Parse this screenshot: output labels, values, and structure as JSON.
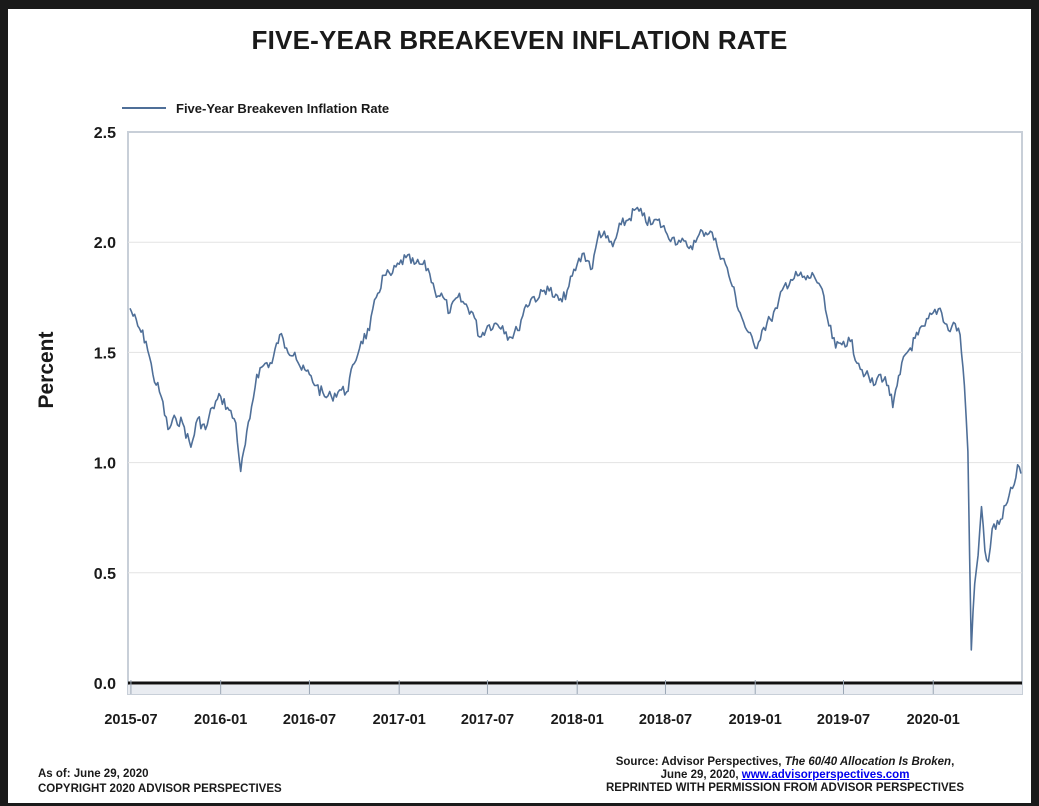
{
  "chart_data": {
    "type": "line",
    "title": "FIVE-YEAR BREAKEVEN INFLATION RATE",
    "ylabel": "Percent",
    "xlabel": "",
    "ylim": [
      -0.05,
      2.5
    ],
    "y_ticks": [
      "0.0",
      "0.5",
      "1.0",
      "1.5",
      "2.0",
      "2.5"
    ],
    "x_ticks": [
      "2015-07",
      "2016-01",
      "2016-07",
      "2017-01",
      "2017-07",
      "2018-01",
      "2018-07",
      "2019-01",
      "2019-07",
      "2020-01"
    ],
    "grid": true,
    "legend_position": "top-left",
    "series": [
      {
        "name": "Five-Year Breakeven Inflation Rate",
        "color": "#4f6f98",
        "points": [
          [
            "2015-06-29",
            1.7
          ],
          [
            "2015-07-15",
            1.62
          ],
          [
            "2015-08-01",
            1.55
          ],
          [
            "2015-08-15",
            1.4
          ],
          [
            "2015-09-01",
            1.3
          ],
          [
            "2015-09-15",
            1.15
          ],
          [
            "2015-10-01",
            1.2
          ],
          [
            "2015-10-15",
            1.18
          ],
          [
            "2015-11-01",
            1.07
          ],
          [
            "2015-11-15",
            1.2
          ],
          [
            "2015-12-01",
            1.15
          ],
          [
            "2015-12-15",
            1.25
          ],
          [
            "2016-01-01",
            1.3
          ],
          [
            "2016-01-15",
            1.25
          ],
          [
            "2016-02-01",
            1.18
          ],
          [
            "2016-02-11",
            0.96
          ],
          [
            "2016-03-01",
            1.2
          ],
          [
            "2016-03-15",
            1.4
          ],
          [
            "2016-04-01",
            1.45
          ],
          [
            "2016-04-15",
            1.45
          ],
          [
            "2016-05-01",
            1.58
          ],
          [
            "2016-05-15",
            1.52
          ],
          [
            "2016-06-01",
            1.5
          ],
          [
            "2016-06-15",
            1.42
          ],
          [
            "2016-07-01",
            1.4
          ],
          [
            "2016-07-15",
            1.35
          ],
          [
            "2016-08-01",
            1.3
          ],
          [
            "2016-08-15",
            1.3
          ],
          [
            "2016-09-01",
            1.33
          ],
          [
            "2016-09-15",
            1.32
          ],
          [
            "2016-10-01",
            1.45
          ],
          [
            "2016-10-15",
            1.55
          ],
          [
            "2016-11-01",
            1.6
          ],
          [
            "2016-11-15",
            1.75
          ],
          [
            "2016-12-01",
            1.85
          ],
          [
            "2016-12-15",
            1.85
          ],
          [
            "2017-01-01",
            1.9
          ],
          [
            "2017-01-15",
            1.93
          ],
          [
            "2017-02-01",
            1.9
          ],
          [
            "2017-02-15",
            1.9
          ],
          [
            "2017-03-01",
            1.88
          ],
          [
            "2017-03-15",
            1.78
          ],
          [
            "2017-04-01",
            1.75
          ],
          [
            "2017-04-15",
            1.68
          ],
          [
            "2017-05-01",
            1.75
          ],
          [
            "2017-05-15",
            1.72
          ],
          [
            "2017-06-01",
            1.68
          ],
          [
            "2017-06-15",
            1.57
          ],
          [
            "2017-07-01",
            1.62
          ],
          [
            "2017-07-15",
            1.63
          ],
          [
            "2017-08-01",
            1.62
          ],
          [
            "2017-08-15",
            1.57
          ],
          [
            "2017-09-01",
            1.6
          ],
          [
            "2017-09-15",
            1.7
          ],
          [
            "2017-10-01",
            1.75
          ],
          [
            "2017-10-15",
            1.75
          ],
          [
            "2017-11-01",
            1.8
          ],
          [
            "2017-11-15",
            1.75
          ],
          [
            "2017-12-01",
            1.73
          ],
          [
            "2017-12-15",
            1.8
          ],
          [
            "2018-01-01",
            1.9
          ],
          [
            "2018-01-15",
            1.95
          ],
          [
            "2018-02-01",
            1.88
          ],
          [
            "2018-02-15",
            2.05
          ],
          [
            "2018-03-01",
            2.02
          ],
          [
            "2018-03-15",
            1.98
          ],
          [
            "2018-04-01",
            2.08
          ],
          [
            "2018-04-15",
            2.1
          ],
          [
            "2018-05-01",
            2.15
          ],
          [
            "2018-05-15",
            2.12
          ],
          [
            "2018-06-01",
            2.08
          ],
          [
            "2018-06-15",
            2.1
          ],
          [
            "2018-07-01",
            2.05
          ],
          [
            "2018-07-15",
            2.02
          ],
          [
            "2018-08-01",
            2.0
          ],
          [
            "2018-08-15",
            1.98
          ],
          [
            "2018-09-01",
            2.0
          ],
          [
            "2018-09-15",
            2.05
          ],
          [
            "2018-10-01",
            2.05
          ],
          [
            "2018-10-15",
            1.98
          ],
          [
            "2018-11-01",
            1.9
          ],
          [
            "2018-11-15",
            1.8
          ],
          [
            "2018-12-01",
            1.68
          ],
          [
            "2018-12-15",
            1.6
          ],
          [
            "2019-01-01",
            1.52
          ],
          [
            "2019-01-15",
            1.6
          ],
          [
            "2019-02-01",
            1.65
          ],
          [
            "2019-02-15",
            1.7
          ],
          [
            "2019-03-01",
            1.8
          ],
          [
            "2019-03-15",
            1.83
          ],
          [
            "2019-04-01",
            1.85
          ],
          [
            "2019-04-15",
            1.83
          ],
          [
            "2019-05-01",
            1.85
          ],
          [
            "2019-05-15",
            1.8
          ],
          [
            "2019-06-01",
            1.62
          ],
          [
            "2019-06-15",
            1.52
          ],
          [
            "2019-07-01",
            1.55
          ],
          [
            "2019-07-15",
            1.55
          ],
          [
            "2019-08-01",
            1.45
          ],
          [
            "2019-08-15",
            1.4
          ],
          [
            "2019-09-01",
            1.35
          ],
          [
            "2019-09-15",
            1.4
          ],
          [
            "2019-10-01",
            1.35
          ],
          [
            "2019-10-10",
            1.25
          ],
          [
            "2019-10-25",
            1.4
          ],
          [
            "2019-11-01",
            1.48
          ],
          [
            "2019-11-15",
            1.52
          ],
          [
            "2019-12-01",
            1.58
          ],
          [
            "2019-12-15",
            1.62
          ],
          [
            "2020-01-01",
            1.68
          ],
          [
            "2020-01-15",
            1.7
          ],
          [
            "2020-02-01",
            1.6
          ],
          [
            "2020-02-15",
            1.63
          ],
          [
            "2020-02-25",
            1.58
          ],
          [
            "2020-03-05",
            1.35
          ],
          [
            "2020-03-12",
            1.05
          ],
          [
            "2020-03-19",
            0.15
          ],
          [
            "2020-03-26",
            0.45
          ],
          [
            "2020-04-02",
            0.58
          ],
          [
            "2020-04-09",
            0.8
          ],
          [
            "2020-04-16",
            0.6
          ],
          [
            "2020-04-23",
            0.55
          ],
          [
            "2020-05-01",
            0.7
          ],
          [
            "2020-05-15",
            0.72
          ],
          [
            "2020-06-01",
            0.82
          ],
          [
            "2020-06-15",
            0.9
          ],
          [
            "2020-06-22",
            0.99
          ],
          [
            "2020-06-29",
            0.95
          ]
        ]
      }
    ]
  },
  "footer": {
    "as_of": "As of: June 29, 2020",
    "copyright": "COPYRIGHT 2020 ADVISOR PERSPECTIVES",
    "source_prefix": "Source: Advisor Perspectives, ",
    "source_title": "The 60/40 Allocation Is Broken",
    "source_comma": ",",
    "source_date": "June 29, 2020, ",
    "source_link": "www.advisorperspectives.com",
    "permission": "REPRINTED WITH PERMISSION FROM ADVISOR PERSPECTIVES"
  }
}
